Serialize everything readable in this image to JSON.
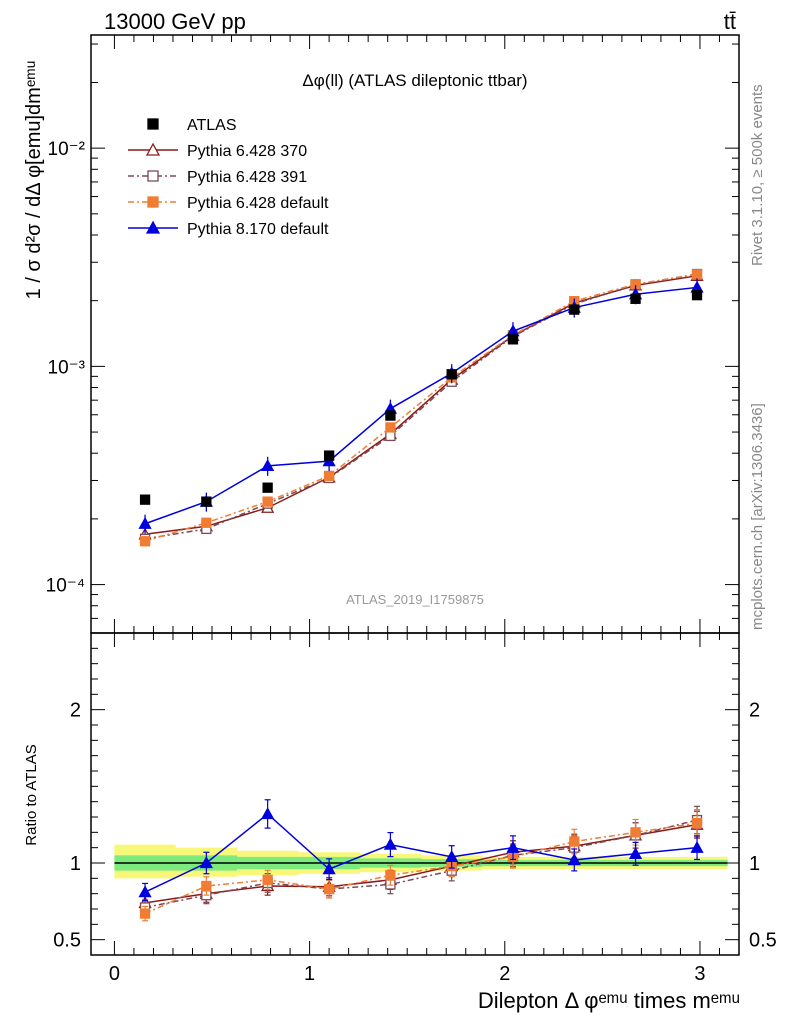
{
  "header": {
    "energy_label": "13000 GeV pp",
    "process_label": "tt̄",
    "plot_title": "Δφ(ll) (ATLAS dileptonic ttbar)",
    "analysis_id": "ATLAS_2019_I1759875",
    "rivet_label": "Rivet 3.1.10, ≥ 500k events",
    "source_label": "mcplots.cern.ch [arXiv:1306.3436]"
  },
  "chart_data": [
    {
      "type": "line",
      "panel": "main",
      "ylabel": "1 / σ  d²σ / dΔ φ[emu]dmᵉᵐᵘ",
      "yscale": "log",
      "ylim": [
        6e-05,
        0.033
      ],
      "xlim": [
        -0.12,
        3.2
      ],
      "ytick_labels": [
        "10⁻⁴",
        "10⁻³",
        "10⁻²"
      ],
      "legend_position": "top-left",
      "x": [
        0.157,
        0.471,
        0.785,
        1.1,
        1.414,
        1.728,
        2.042,
        2.356,
        2.67,
        2.985
      ],
      "series": [
        {
          "name": "ATLAS",
          "color": "#000000",
          "marker": "filled-square",
          "values": [
            0.000245,
            0.00024,
            0.000278,
            0.00039,
            0.000595,
            0.00092,
            0.00133,
            0.00182,
            0.00204,
            0.00212
          ]
        },
        {
          "name": "Pythia 6.428 370",
          "color": "#8b1a1a",
          "marker": "open-triangle",
          "values": [
            0.00017,
            0.000185,
            0.000225,
            0.00031,
            0.00049,
            0.00087,
            0.00138,
            0.00195,
            0.00235,
            0.0026
          ]
        },
        {
          "name": "Pythia 6.428 391",
          "color": "#7a4a55",
          "marker": "open-square",
          "values": [
            0.000162,
            0.00018,
            0.000235,
            0.000308,
            0.00048,
            0.00085,
            0.00137,
            0.00193,
            0.00237,
            0.00265
          ]
        },
        {
          "name": "Pythia 6.428 default",
          "color": "#f07d33",
          "marker": "filled-square",
          "values": [
            0.000158,
            0.000192,
            0.00024,
            0.000315,
            0.000525,
            0.00089,
            0.00139,
            0.00199,
            0.00238,
            0.00264
          ]
        },
        {
          "name": "Pythia 8.170 default",
          "color": "#0000dd",
          "marker": "filled-triangle",
          "values": [
            0.00019,
            0.00024,
            0.00035,
            0.000368,
            0.00064,
            0.00093,
            0.00145,
            0.00186,
            0.00214,
            0.0023
          ]
        }
      ]
    },
    {
      "type": "line",
      "panel": "ratio",
      "ylabel": "Ratio to ATLAS",
      "xlabel": "Dilepton Δ φᵉᵐᵘ times mᵉᵐᵘ",
      "ylim": [
        0.4,
        2.5
      ],
      "ytick_labels": [
        "0.5",
        "1",
        "2"
      ],
      "xtick_labels": [
        "0",
        "1",
        "2",
        "3"
      ],
      "x": [
        0.157,
        0.471,
        0.785,
        1.1,
        1.414,
        1.728,
        2.042,
        2.356,
        2.67,
        2.985
      ],
      "band_inner": {
        "color": "#7dea7d",
        "lo": [
          0.95,
          0.95,
          0.96,
          0.96,
          0.97,
          0.975,
          0.98,
          0.98,
          0.98,
          0.98
        ],
        "hi": [
          1.05,
          1.05,
          1.04,
          1.04,
          1.03,
          1.025,
          1.02,
          1.02,
          1.02,
          1.02
        ]
      },
      "band_outer": {
        "color": "#f7f77a",
        "lo": [
          0.9,
          0.91,
          0.92,
          0.93,
          0.94,
          0.95,
          0.96,
          0.96,
          0.96,
          0.96
        ],
        "hi": [
          1.12,
          1.1,
          1.08,
          1.07,
          1.06,
          1.05,
          1.04,
          1.04,
          1.04,
          1.04
        ]
      },
      "series": [
        {
          "name": "Pythia 6.428 370",
          "color": "#8b1a1a",
          "marker": "open-triangle",
          "values": [
            0.74,
            0.8,
            0.85,
            0.845,
            0.89,
            0.98,
            1.07,
            1.11,
            1.18,
            1.25
          ]
        },
        {
          "name": "Pythia 6.428 391",
          "color": "#7a4a55",
          "marker": "open-square",
          "values": [
            0.71,
            0.79,
            0.87,
            0.83,
            0.86,
            0.95,
            1.05,
            1.1,
            1.18,
            1.28
          ]
        },
        {
          "name": "Pythia 6.428 default",
          "color": "#f07d33",
          "marker": "filled-square",
          "values": [
            0.67,
            0.85,
            0.89,
            0.83,
            0.92,
            0.98,
            1.04,
            1.14,
            1.2,
            1.26
          ]
        },
        {
          "name": "Pythia 8.170 default",
          "color": "#0000dd",
          "marker": "filled-triangle",
          "values": [
            0.81,
            1.0,
            1.32,
            0.96,
            1.12,
            1.04,
            1.1,
            1.02,
            1.06,
            1.1
          ]
        }
      ]
    }
  ]
}
